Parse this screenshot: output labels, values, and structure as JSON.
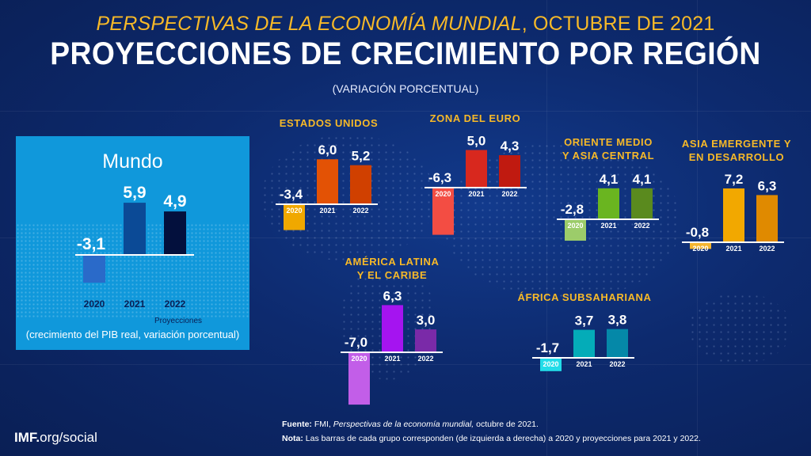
{
  "header": {
    "suptitle_italic": "PERSPECTIVAS DE LA ECONOMÍA MUNDIAL",
    "suptitle_rest": ", OCTUBRE DE 2021",
    "title": "PROYECCIONES DE CRECIMIENTO POR REGIÓN",
    "subtitle": "(VARIACIÓN PORCENTUAL)"
  },
  "world_box": {
    "title": "Mundo",
    "projections_label": "Proyecciones",
    "footnote": "(crecimiento del PIB real, variación porcentual)"
  },
  "footer": {
    "source_label": "Fuente:",
    "source_text_plain": " FMI, ",
    "source_text_italic": "Perspectivas de la economía mundial,",
    "source_text_end": " octubre de 2021.",
    "note_label": "Nota:",
    "note_text": "  Las barras de cada grupo corresponden (de izquierda a derecha) a 2020 y proyecciones para 2021 y 2022.",
    "brand_bold": "IMF.",
    "brand_rest": "org/social"
  },
  "chart_data": [
    {
      "type": "bar",
      "title": "Mundo",
      "categories": [
        "2020",
        "2021",
        "2022"
      ],
      "values": [
        -3.1,
        5.9,
        4.9
      ],
      "labels": [
        "-3,1",
        "5,9",
        "4,9"
      ],
      "colors": [
        "#2a6ac9",
        "#0b4a96",
        "#03103d"
      ],
      "note": "2021 y 2022 son proyecciones"
    },
    {
      "type": "bar",
      "title": "ESTADOS UNIDOS",
      "categories": [
        "2020",
        "2021",
        "2022"
      ],
      "values": [
        -3.4,
        6.0,
        5.2
      ],
      "labels": [
        "-3,4",
        "6,0",
        "5,2"
      ],
      "colors": [
        "#f0a800",
        "#e35205",
        "#d04000"
      ]
    },
    {
      "type": "bar",
      "title": "ZONA DEL EURO",
      "categories": [
        "2020",
        "2021",
        "2022"
      ],
      "values": [
        -6.3,
        5.0,
        4.3
      ],
      "labels": [
        "-6,3",
        "5,0",
        "4,3"
      ],
      "colors": [
        "#f34d43",
        "#d8281e",
        "#c01a10"
      ]
    },
    {
      "type": "bar",
      "title": "ORIENTE MEDIO Y ASIA CENTRAL",
      "title_lines": [
        "ORIENTE MEDIO",
        "Y ASIA CENTRAL"
      ],
      "categories": [
        "2020",
        "2021",
        "2022"
      ],
      "values": [
        -2.8,
        4.1,
        4.1
      ],
      "labels": [
        "-2,8",
        "4,1",
        "4,1"
      ],
      "colors": [
        "#9ccc6a",
        "#6ab520",
        "#5a8a1e"
      ]
    },
    {
      "type": "bar",
      "title": "ASIA EMERGENTE Y EN DESARROLLO",
      "title_lines": [
        "ASIA EMERGENTE Y",
        "EN DESARROLLO"
      ],
      "categories": [
        "2020",
        "2021",
        "2022"
      ],
      "values": [
        -0.8,
        7.2,
        6.3
      ],
      "labels": [
        "-0,8",
        "7,2",
        "6,3"
      ],
      "colors": [
        "#f5b530",
        "#f2a800",
        "#e08a00"
      ]
    },
    {
      "type": "bar",
      "title": "AMÉRICA LATINA Y EL CARIBE",
      "title_lines": [
        "AMÉRICA LATINA",
        "Y EL CARIBE"
      ],
      "categories": [
        "2020",
        "2021",
        "2022"
      ],
      "values": [
        -7.0,
        6.3,
        3.0
      ],
      "labels": [
        "-7,0",
        "6,3",
        "3,0"
      ],
      "colors": [
        "#c25ee8",
        "#a514f0",
        "#7a2aa8"
      ]
    },
    {
      "type": "bar",
      "title": "ÁFRICA SUBSAHARIANA",
      "categories": [
        "2020",
        "2021",
        "2022"
      ],
      "values": [
        -1.7,
        3.7,
        3.8
      ],
      "labels": [
        "-1,7",
        "3,7",
        "3,8"
      ],
      "colors": [
        "#22dce8",
        "#04acb8",
        "#0588a8"
      ]
    }
  ]
}
